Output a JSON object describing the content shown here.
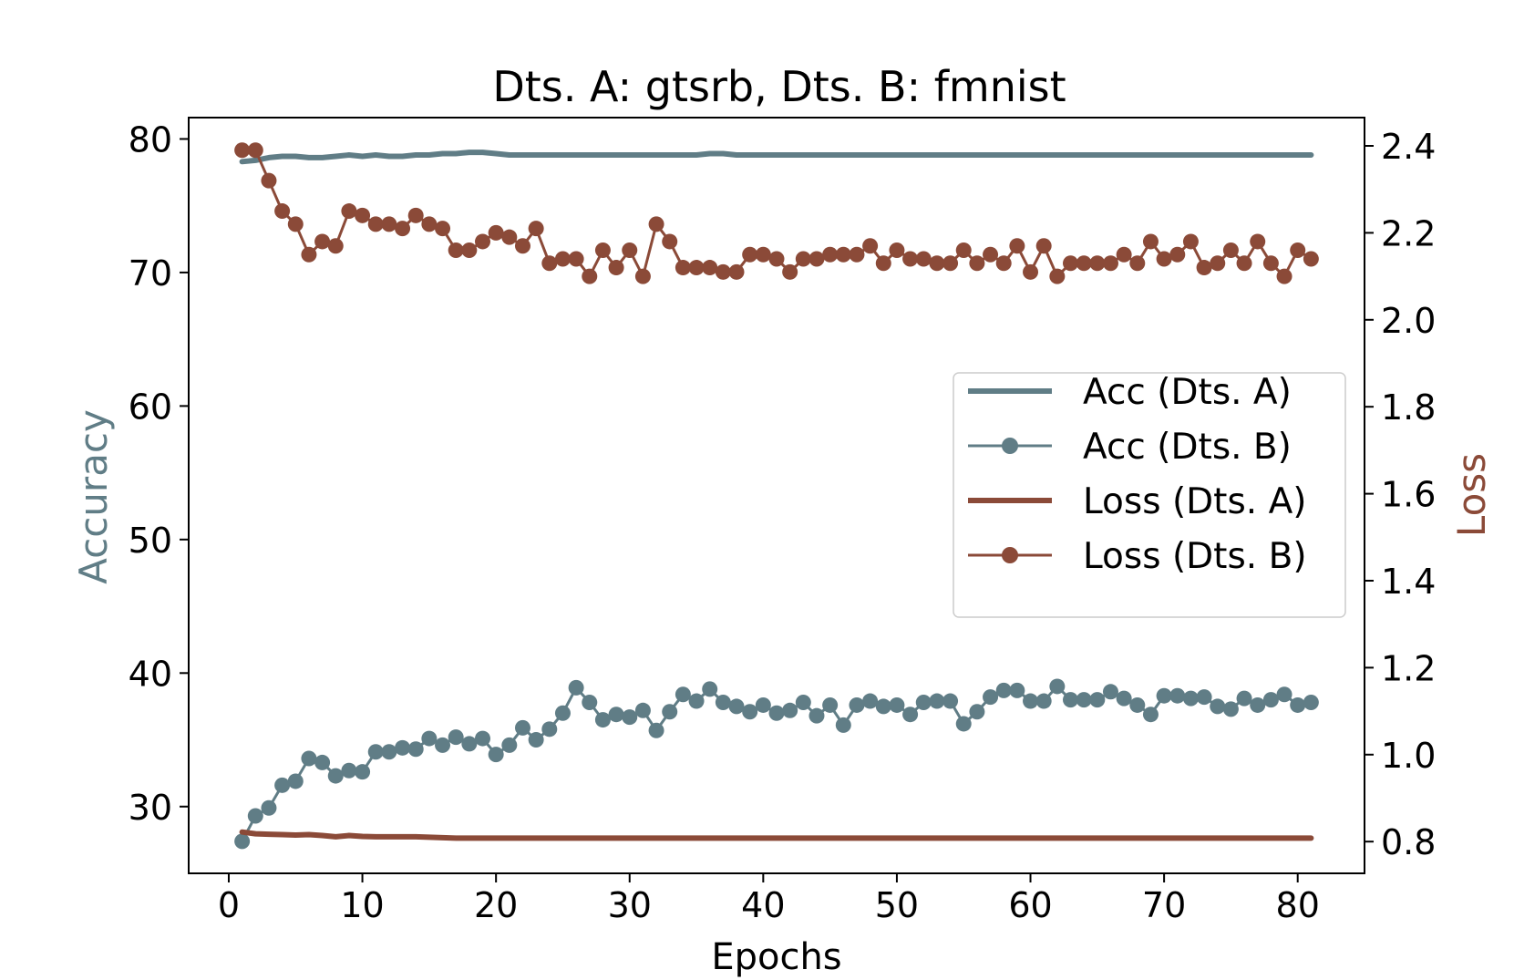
{
  "colors": {
    "acc": "#607d86",
    "loss": "#8b4a38",
    "axis": "#000000",
    "legend_border": "#cccccc"
  },
  "chart_data": {
    "type": "line",
    "title": "Dts. A: gtsrb, Dts. B: fmnist",
    "xlabel": "Epochs",
    "ylabel_left": "Accuracy",
    "ylabel_right": "Loss",
    "xlim": [
      -3,
      85
    ],
    "ylim_left": [
      25,
      81.6
    ],
    "ylim_right": [
      0.727,
      2.465
    ],
    "xticks": [
      0,
      10,
      20,
      30,
      40,
      50,
      60,
      70,
      80
    ],
    "xtick_labels": [
      "0",
      "10",
      "20",
      "30",
      "40",
      "50",
      "60",
      "70",
      "80"
    ],
    "yticks_left": [
      30,
      40,
      50,
      60,
      70,
      80
    ],
    "ytick_labels_left": [
      "30",
      "40",
      "50",
      "60",
      "70",
      "80"
    ],
    "yticks_right": [
      0.8,
      1.0,
      1.2,
      1.4,
      1.6,
      1.8,
      2.0,
      2.2,
      2.4
    ],
    "ytick_labels_right": [
      "0.8",
      "1.0",
      "1.2",
      "1.4",
      "1.6",
      "1.8",
      "2.0",
      "2.2",
      "2.4"
    ],
    "legend_position": "center-right",
    "x": [
      1,
      2,
      3,
      4,
      5,
      6,
      7,
      8,
      9,
      10,
      11,
      12,
      13,
      14,
      15,
      16,
      17,
      18,
      19,
      20,
      21,
      22,
      23,
      24,
      25,
      26,
      27,
      28,
      29,
      30,
      31,
      32,
      33,
      34,
      35,
      36,
      37,
      38,
      39,
      40,
      41,
      42,
      43,
      44,
      45,
      46,
      47,
      48,
      49,
      50,
      51,
      52,
      53,
      54,
      55,
      56,
      57,
      58,
      59,
      60,
      61,
      62,
      63,
      64,
      65,
      66,
      67,
      68,
      69,
      70,
      71,
      72,
      73,
      74,
      75,
      76,
      77,
      78,
      79,
      80,
      81
    ],
    "series": [
      {
        "name": "Acc (Dts. A)",
        "axis": "left",
        "marker": false,
        "color_key": "acc",
        "values": [
          78.3,
          78.4,
          78.6,
          78.7,
          78.7,
          78.6,
          78.6,
          78.7,
          78.8,
          78.7,
          78.8,
          78.7,
          78.7,
          78.8,
          78.8,
          78.9,
          78.9,
          79.0,
          79.0,
          78.9,
          78.8,
          78.8,
          78.8,
          78.8,
          78.8,
          78.8,
          78.8,
          78.8,
          78.8,
          78.8,
          78.8,
          78.8,
          78.8,
          78.8,
          78.8,
          78.9,
          78.9,
          78.8,
          78.8,
          78.8,
          78.8,
          78.8,
          78.8,
          78.8,
          78.8,
          78.8,
          78.8,
          78.8,
          78.8,
          78.8,
          78.8,
          78.8,
          78.8,
          78.8,
          78.8,
          78.8,
          78.8,
          78.8,
          78.8,
          78.8,
          78.8,
          78.8,
          78.8,
          78.8,
          78.8,
          78.8,
          78.8,
          78.8,
          78.8,
          78.8,
          78.8,
          78.8,
          78.8,
          78.8,
          78.8,
          78.8,
          78.8,
          78.8,
          78.8,
          78.8,
          78.8
        ]
      },
      {
        "name": "Acc (Dts. B)",
        "axis": "left",
        "marker": true,
        "color_key": "acc",
        "values": [
          27.4,
          29.3,
          29.9,
          31.6,
          31.9,
          33.6,
          33.3,
          32.3,
          32.7,
          32.6,
          34.1,
          34.1,
          34.4,
          34.3,
          35.1,
          34.6,
          35.2,
          34.7,
          35.1,
          33.9,
          34.6,
          35.9,
          35.0,
          35.8,
          37.0,
          38.9,
          37.8,
          36.5,
          36.9,
          36.7,
          37.2,
          35.7,
          37.1,
          38.4,
          37.9,
          38.8,
          37.8,
          37.5,
          37.1,
          37.6,
          37.0,
          37.2,
          37.8,
          36.8,
          37.6,
          36.1,
          37.6,
          37.9,
          37.5,
          37.6,
          36.9,
          37.8,
          37.9,
          37.9,
          36.2,
          37.1,
          38.2,
          38.7,
          38.7,
          37.9,
          37.9,
          39.0,
          38.0,
          38.0,
          38.0,
          38.6,
          38.1,
          37.6,
          36.9,
          38.3,
          38.3,
          38.1,
          38.2,
          37.5,
          37.3,
          38.1,
          37.6,
          38.0,
          38.4,
          37.6,
          37.8
        ]
      },
      {
        "name": "Loss (Dts. A)",
        "axis": "right",
        "marker": false,
        "color_key": "loss",
        "values": [
          0.822,
          0.818,
          0.817,
          0.816,
          0.815,
          0.816,
          0.814,
          0.811,
          0.814,
          0.812,
          0.811,
          0.811,
          0.811,
          0.811,
          0.81,
          0.809,
          0.808,
          0.808,
          0.808,
          0.808,
          0.808,
          0.808,
          0.808,
          0.808,
          0.808,
          0.808,
          0.808,
          0.808,
          0.808,
          0.808,
          0.808,
          0.808,
          0.808,
          0.808,
          0.808,
          0.808,
          0.808,
          0.808,
          0.808,
          0.808,
          0.808,
          0.808,
          0.808,
          0.808,
          0.808,
          0.808,
          0.808,
          0.808,
          0.808,
          0.808,
          0.808,
          0.808,
          0.808,
          0.808,
          0.808,
          0.808,
          0.808,
          0.808,
          0.808,
          0.808,
          0.808,
          0.808,
          0.808,
          0.808,
          0.808,
          0.808,
          0.808,
          0.808,
          0.808,
          0.808,
          0.808,
          0.808,
          0.808,
          0.808,
          0.808,
          0.808,
          0.808,
          0.808,
          0.808,
          0.808,
          0.808
        ]
      },
      {
        "name": "Loss (Dts. B)",
        "axis": "right",
        "marker": true,
        "color_key": "loss",
        "values": [
          2.39,
          2.39,
          2.32,
          2.25,
          2.22,
          2.15,
          2.18,
          2.17,
          2.25,
          2.24,
          2.22,
          2.22,
          2.21,
          2.24,
          2.22,
          2.21,
          2.16,
          2.16,
          2.18,
          2.2,
          2.19,
          2.17,
          2.21,
          2.13,
          2.14,
          2.14,
          2.1,
          2.16,
          2.12,
          2.16,
          2.1,
          2.22,
          2.18,
          2.12,
          2.12,
          2.12,
          2.11,
          2.11,
          2.15,
          2.15,
          2.14,
          2.11,
          2.14,
          2.14,
          2.15,
          2.15,
          2.15,
          2.17,
          2.13,
          2.16,
          2.14,
          2.14,
          2.13,
          2.13,
          2.16,
          2.13,
          2.15,
          2.13,
          2.17,
          2.11,
          2.17,
          2.1,
          2.13,
          2.13,
          2.13,
          2.13,
          2.15,
          2.13,
          2.18,
          2.14,
          2.15,
          2.18,
          2.12,
          2.13,
          2.16,
          2.13,
          2.18,
          2.13,
          2.1,
          2.16,
          2.14
        ]
      }
    ]
  }
}
